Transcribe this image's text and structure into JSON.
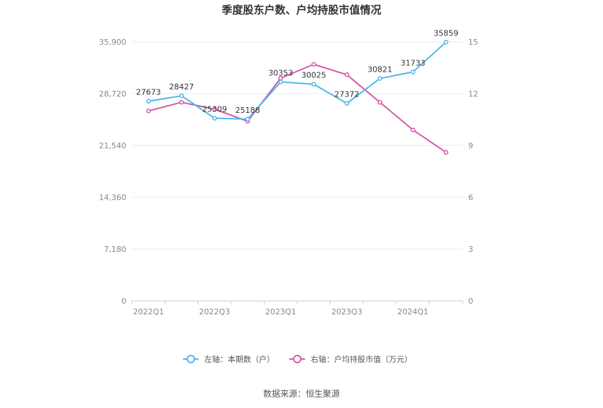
{
  "title": "季度股东户数、户均持股市值情况",
  "source_label": "数据来源：恒生聚源",
  "colors": {
    "left_series": "#4fb9ec",
    "right_series": "#d957a8",
    "grid": "#e6e9f2",
    "axis": "#cccccc"
  },
  "chart_data": {
    "type": "line",
    "x_tick_labels": [
      "2022Q1",
      "2022Q3",
      "2023Q1",
      "2023Q3",
      "2024Q1"
    ],
    "x": [
      "2022Q1",
      "2022Q2",
      "2022Q3",
      "2022Q4",
      "2023Q1",
      "2023Q2",
      "2023Q3",
      "2023Q4",
      "2024Q1",
      "2024Q2"
    ],
    "left_axis": {
      "ticks": [
        "0",
        "7,180",
        "14,360",
        "21,540",
        "28,720",
        "35,900"
      ],
      "range": [
        0,
        35900
      ]
    },
    "right_axis": {
      "ticks": [
        "0",
        "3",
        "6",
        "9",
        "12",
        "15"
      ],
      "range": [
        0,
        15
      ]
    },
    "grid": true,
    "legend_position": "bottom-center",
    "series": [
      {
        "name": "左轴：本期数（户）",
        "axis": "left",
        "values": [
          27673,
          28427,
          25309,
          25188,
          30353,
          30025,
          27372,
          30821,
          31733,
          35859
        ],
        "labels": [
          "27673",
          "28427",
          "25309",
          "25188",
          "30353",
          "30025",
          "27372",
          "30821",
          "31733",
          "35859"
        ]
      },
      {
        "name": "右轴：户均持股市值（万元）",
        "axis": "right",
        "values": [
          11.0,
          11.5,
          11.1,
          10.4,
          12.9,
          13.7,
          13.1,
          11.5,
          9.9,
          8.6
        ]
      }
    ]
  }
}
